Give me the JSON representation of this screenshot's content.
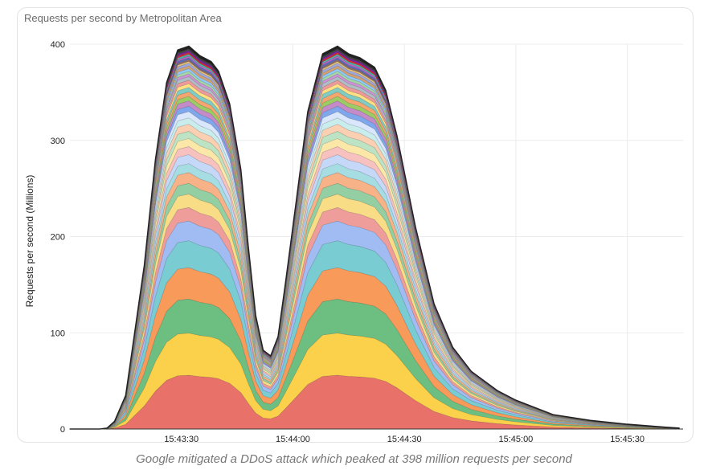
{
  "chart_data": {
    "type": "area",
    "stacked": true,
    "title": "Requests per second by Metropolitan Area",
    "ylabel": "Requests per second (Millions)",
    "xlabel": "",
    "ylim": [
      0,
      400
    ],
    "yticks": [
      "0",
      "100",
      "200",
      "300",
      "400"
    ],
    "xticks": [
      "15:43:30",
      "15:44:00",
      "15:44:30",
      "15:45:00",
      "15:45:30"
    ],
    "xlim_seconds_since_15_43_00": [
      0,
      165
    ],
    "grid": true,
    "legend": "none",
    "num_series": 40,
    "x": [
      0,
      8,
      10,
      12,
      15,
      20,
      23,
      26,
      29,
      32,
      35,
      38,
      40,
      43,
      46,
      48,
      50,
      52,
      54,
      56,
      58,
      61,
      64,
      68,
      72,
      75,
      78,
      82,
      85,
      88,
      93,
      98,
      103,
      108,
      115,
      120,
      130,
      140,
      150,
      160,
      164
    ],
    "totals": [
      0,
      0,
      1,
      8,
      35,
      170,
      280,
      360,
      394,
      398,
      388,
      382,
      372,
      338,
      270,
      190,
      118,
      82,
      76,
      96,
      152,
      240,
      330,
      390,
      398,
      390,
      386,
      376,
      352,
      305,
      210,
      130,
      85,
      60,
      40,
      30,
      15,
      9,
      5,
      2,
      1
    ],
    "series": [
      {
        "name": "",
        "color": "#e8726a",
        "peak": 60
      },
      {
        "name": "",
        "color": "#fbd04a",
        "peak": 47
      },
      {
        "name": "",
        "color": "#6dbf81",
        "peak": 38
      },
      {
        "name": "",
        "color": "#f89a5a",
        "peak": 35
      },
      {
        "name": "",
        "color": "#78ccd2",
        "peak": 30
      },
      {
        "name": "",
        "color": "#a0bcf2",
        "peak": 22
      },
      {
        "name": "",
        "color": "#ee9d9b",
        "peak": 15
      },
      {
        "name": "",
        "color": "#f9dd86",
        "peak": 15
      },
      {
        "name": "",
        "color": "#93cfa3",
        "peak": 12
      },
      {
        "name": "",
        "color": "#f8b287",
        "peak": 12
      },
      {
        "name": "",
        "color": "#a5dde2",
        "peak": 10
      },
      {
        "name": "",
        "color": "#c6d8f8",
        "peak": 10
      },
      {
        "name": "",
        "color": "#f7c1bf",
        "peak": 9
      },
      {
        "name": "",
        "color": "#fbe8a9",
        "peak": 9
      },
      {
        "name": "",
        "color": "#bde3c5",
        "peak": 8
      },
      {
        "name": "",
        "color": "#fbcfb1",
        "peak": 8
      },
      {
        "name": "",
        "color": "#c9eced",
        "peak": 7
      },
      {
        "name": "",
        "color": "#dae6fb",
        "peak": 7
      },
      {
        "name": "",
        "color": "#7ea7ec",
        "peak": 6
      },
      {
        "name": "",
        "color": "#c58bc9",
        "peak": 6
      },
      {
        "name": "",
        "color": "#9ccc65",
        "peak": 5
      },
      {
        "name": "",
        "color": "#f4a66f",
        "peak": 5
      },
      {
        "name": "",
        "color": "#80cbc4",
        "peak": 5
      },
      {
        "name": "",
        "color": "#ffe082",
        "peak": 4
      },
      {
        "name": "",
        "color": "#ef9a9a",
        "peak": 4
      },
      {
        "name": "",
        "color": "#b0bec5",
        "peak": 4
      },
      {
        "name": "",
        "color": "#ce93d8",
        "peak": 3
      },
      {
        "name": "",
        "color": "#a5d6a7",
        "peak": 3
      },
      {
        "name": "",
        "color": "#90caf9",
        "peak": 3
      },
      {
        "name": "",
        "color": "#d4a373",
        "peak": 3
      },
      {
        "name": "",
        "color": "#9fa8da",
        "peak": 3
      },
      {
        "name": "",
        "color": "#e6c27a",
        "peak": 2
      },
      {
        "name": "",
        "color": "#8d6e63",
        "peak": 2
      },
      {
        "name": "",
        "color": "#5c6bc0",
        "peak": 2
      },
      {
        "name": "",
        "color": "#ba68c8",
        "peak": 2
      },
      {
        "name": "",
        "color": "#4db6ac",
        "peak": 2
      },
      {
        "name": "",
        "color": "#d32f2f",
        "peak": 2
      },
      {
        "name": "",
        "color": "#7b1fa2",
        "peak": 2
      },
      {
        "name": "",
        "color": "#424242",
        "peak": 2
      },
      {
        "name": "",
        "color": "#212121",
        "peak": 3
      }
    ]
  },
  "caption": "Google mitigated a DDoS attack which peaked at 398 million requests per second"
}
